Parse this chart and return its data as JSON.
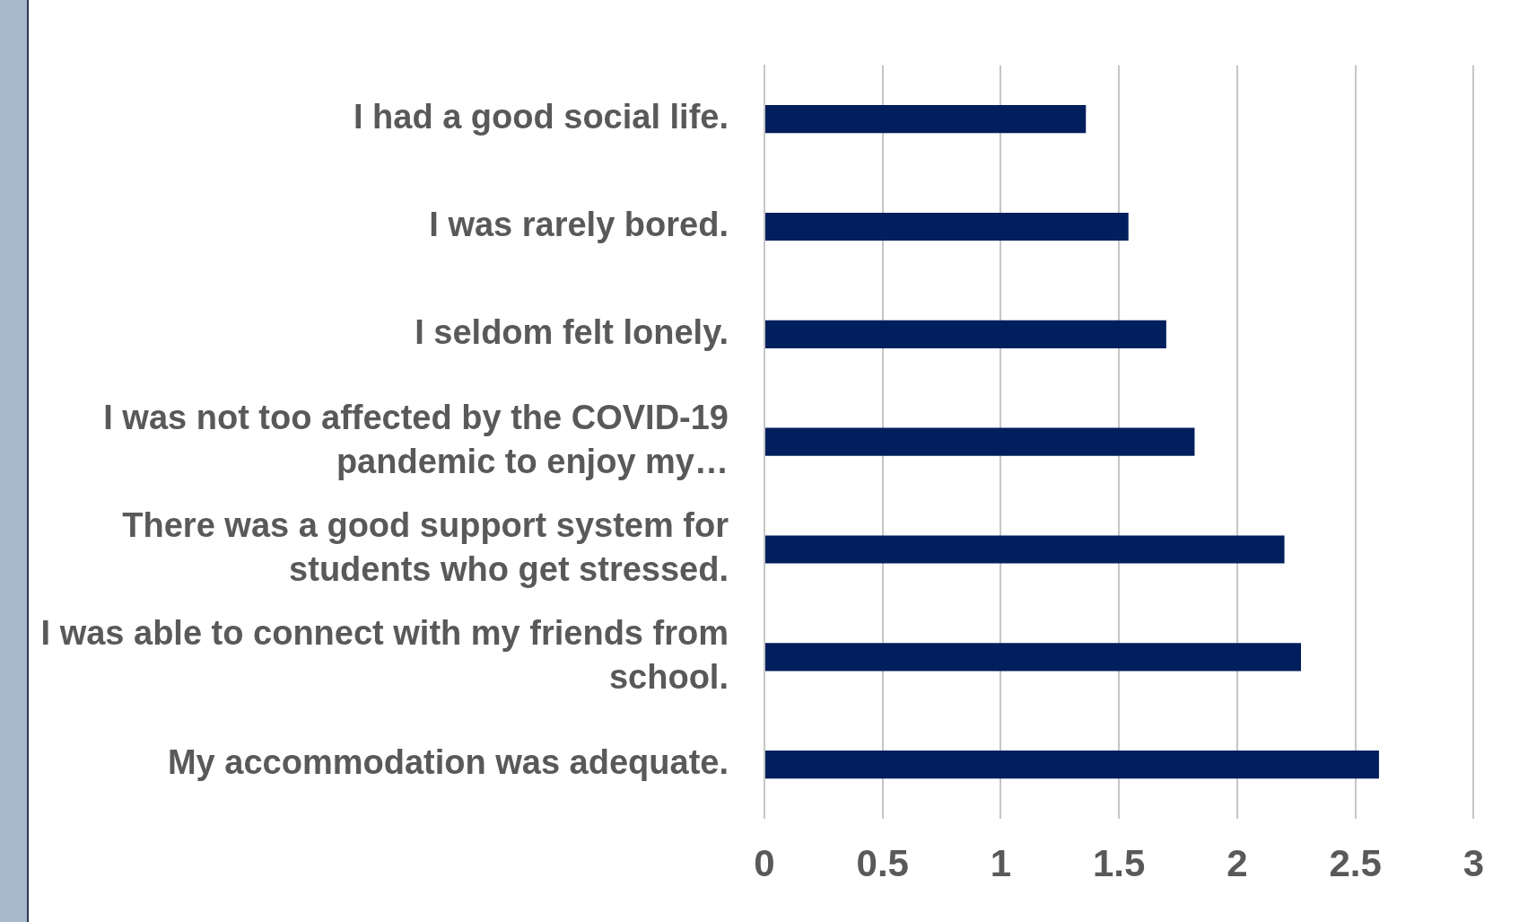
{
  "chart_data": {
    "type": "bar",
    "orientation": "horizontal",
    "categories": [
      "I had a good social life.",
      "I was rarely bored.",
      "I seldom felt lonely.",
      "I was not too affected by the COVID-19 pandemic to enjoy my…",
      "There was a good support system for students who get stressed.",
      "I was able to connect with my friends from school.",
      "My accommodation was adequate."
    ],
    "values": [
      1.36,
      1.54,
      1.7,
      1.82,
      2.2,
      2.27,
      2.6
    ],
    "color": "#001f5c",
    "xlim": [
      0,
      3
    ],
    "xticks": [
      0,
      0.5,
      1,
      1.5,
      2,
      2.5,
      3
    ],
    "grid": "x",
    "legend": false
  }
}
